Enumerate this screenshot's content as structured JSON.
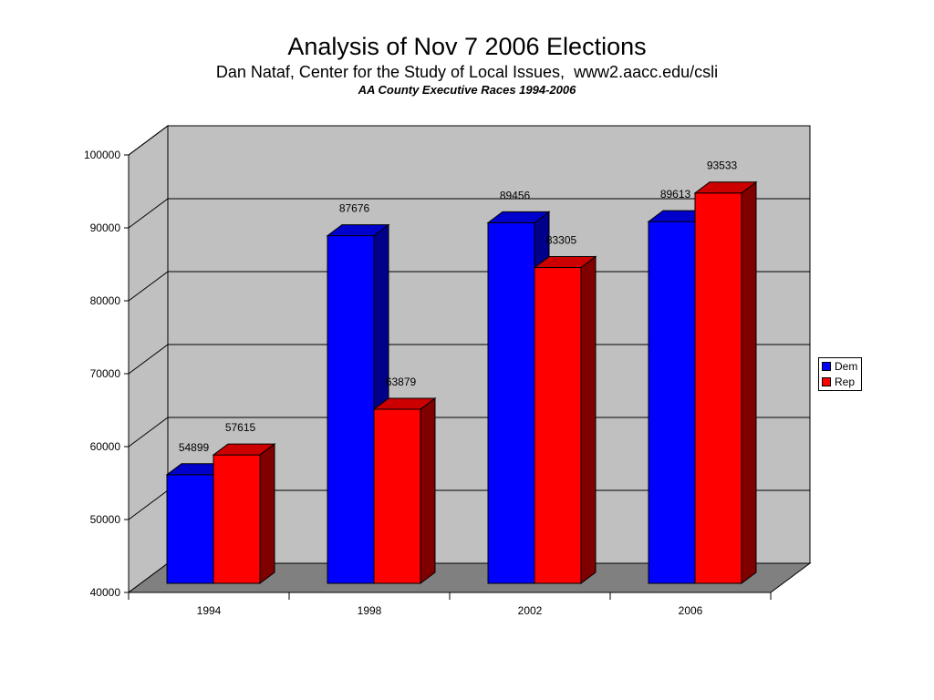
{
  "titles": {
    "main": "Analysis of Nov 7 2006 Elections",
    "sub": "Dan Nataf, Center for the Study of Local Issues,  www2.aacc.edu/csli",
    "chart": "AA County Executive Races 1994-2006"
  },
  "chart_data": {
    "type": "bar",
    "title": "AA County Executive Races 1994-2006",
    "categories": [
      "1994",
      "1998",
      "2002",
      "2006"
    ],
    "series": [
      {
        "name": "Dem",
        "values": [
          54899,
          87676,
          89456,
          89613
        ],
        "color": "#0000ff",
        "side": "#00008b",
        "top": "#0000cc"
      },
      {
        "name": "Rep",
        "values": [
          57615,
          63879,
          83305,
          93533
        ],
        "color": "#ff0000",
        "side": "#800000",
        "top": "#cc0000"
      }
    ],
    "ylim": [
      40000,
      100000
    ],
    "yticks": [
      "40000",
      "50000",
      "60000",
      "70000",
      "80000",
      "90000",
      "100000"
    ],
    "xlabel": "",
    "ylabel": "",
    "grid": true,
    "legend": "right"
  },
  "legend": {
    "items": [
      {
        "label": "Dem",
        "color": "#0000ff"
      },
      {
        "label": "Rep",
        "color": "#ff0000"
      }
    ]
  }
}
